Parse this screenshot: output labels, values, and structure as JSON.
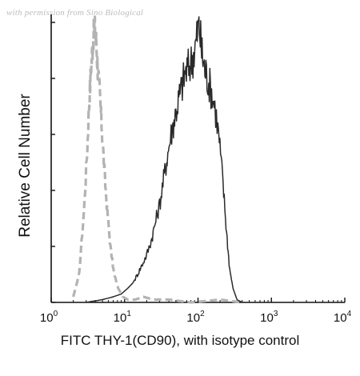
{
  "watermark": "with permission from Sino Biological",
  "chart_data": {
    "type": "area",
    "title": "",
    "xlabel": "FITC THY-1(CD90), with isotype control",
    "ylabel": "Relative Cell Number",
    "xscale": "log",
    "xlim": [
      1,
      10000
    ],
    "ylim": [
      0,
      1
    ],
    "grid": false,
    "x_ticks": [
      {
        "base": "10",
        "exp": "0",
        "value": 1
      },
      {
        "base": "10",
        "exp": "1",
        "value": 10
      },
      {
        "base": "10",
        "exp": "2",
        "value": 100
      },
      {
        "base": "10",
        "exp": "3",
        "value": 1000
      },
      {
        "base": "10",
        "exp": "4",
        "value": 10000
      }
    ],
    "y_ticks": [
      0,
      0.2,
      0.4,
      0.6,
      0.8,
      1.0
    ],
    "series": [
      {
        "role": "isotype control",
        "style": "dashed",
        "color": "#b3b3b3",
        "x": [
          2.0,
          2.4,
          2.8,
          3.1,
          3.3,
          3.5,
          3.7,
          3.9,
          4.1,
          4.3,
          4.6,
          4.9,
          5.3,
          5.8,
          6.4,
          7.2,
          8.2,
          9.5,
          11,
          14,
          18,
          25,
          40,
          80,
          200,
          400
        ],
        "y": [
          0.02,
          0.1,
          0.33,
          0.55,
          0.72,
          0.84,
          0.93,
          0.99,
          0.93,
          0.84,
          0.74,
          0.62,
          0.47,
          0.33,
          0.2,
          0.1,
          0.05,
          0.02,
          0.01,
          0.01,
          0.02,
          0.01,
          0.01,
          0.0,
          0.01,
          0.0
        ]
      },
      {
        "role": "FITC THY-1(CD90)",
        "style": "solid",
        "color": "#2a2a2a",
        "x": [
          3,
          5,
          7,
          9,
          11,
          13,
          15,
          17,
          20,
          23,
          26,
          30,
          34,
          38,
          43,
          48,
          54,
          60,
          67,
          75,
          84,
          93,
          103,
          112,
          122,
          135,
          150,
          170,
          195,
          220,
          245,
          270,
          300,
          340,
          400
        ],
        "y": [
          0.0,
          0.01,
          0.02,
          0.03,
          0.05,
          0.07,
          0.1,
          0.13,
          0.17,
          0.22,
          0.28,
          0.35,
          0.44,
          0.52,
          0.6,
          0.66,
          0.72,
          0.77,
          0.82,
          0.84,
          0.87,
          0.92,
          1.0,
          0.9,
          0.84,
          0.8,
          0.76,
          0.7,
          0.58,
          0.42,
          0.25,
          0.12,
          0.05,
          0.01,
          0.0
        ]
      }
    ]
  }
}
